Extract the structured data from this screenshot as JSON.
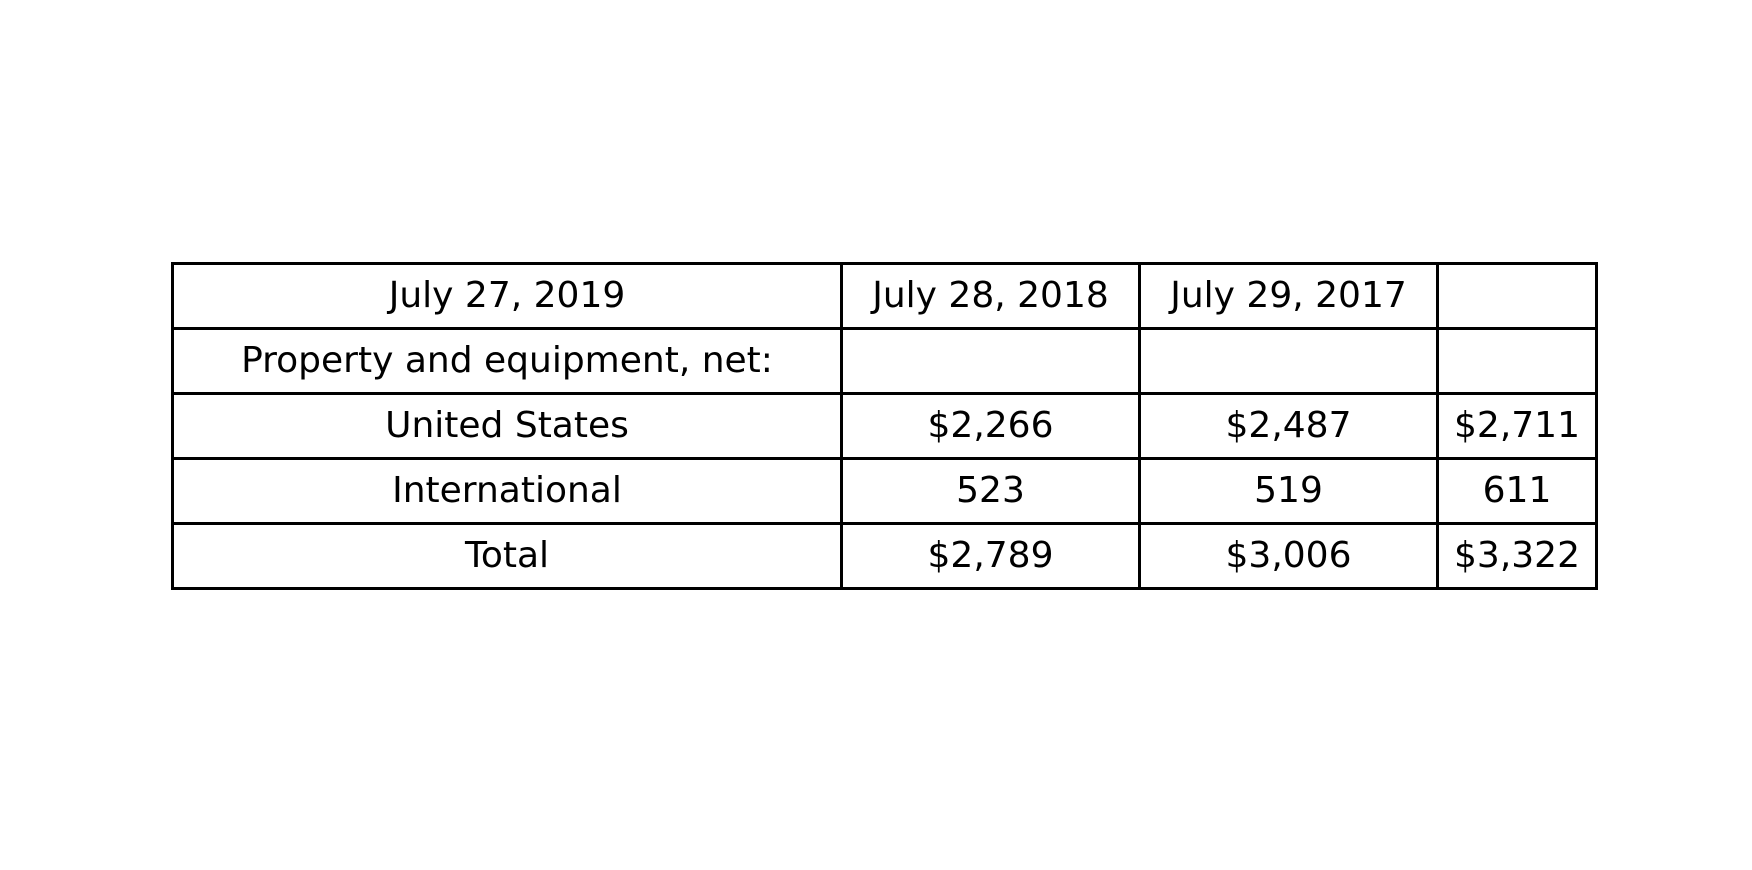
{
  "table": {
    "rows": [
      [
        "July 27, 2019",
        "July 28, 2018",
        "July 29, 2017",
        ""
      ],
      [
        "Property and equipment, net:",
        "",
        "",
        ""
      ],
      [
        "United States",
        "$2,266",
        "$2,487",
        "$2,711"
      ],
      [
        "International",
        "523",
        "519",
        "611"
      ],
      [
        "Total",
        "$2,789",
        "$3,006",
        "$3,322"
      ]
    ]
  },
  "chart_data": {
    "type": "table",
    "header": [
      "July 27, 2019",
      "July 28, 2018",
      "July 29, 2017",
      ""
    ],
    "rows": [
      [
        "Property and equipment, net:",
        "",
        "",
        ""
      ],
      [
        "United States",
        "$2,266",
        "$2,487",
        "$2,711"
      ],
      [
        "International",
        "523",
        "519",
        "611"
      ],
      [
        "Total",
        "$2,789",
        "$3,006",
        "$3,322"
      ]
    ]
  }
}
